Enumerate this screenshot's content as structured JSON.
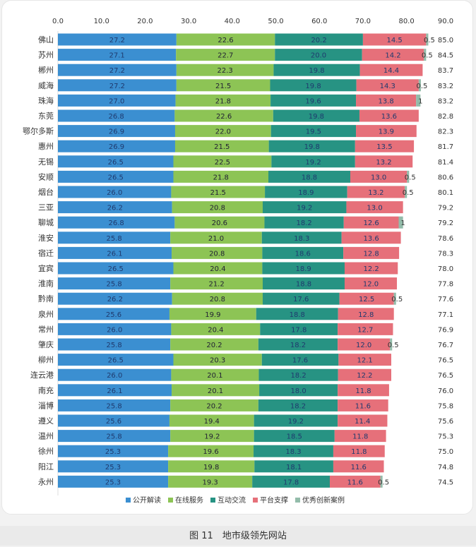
{
  "chart_data": {
    "type": "bar",
    "orientation": "horizontal",
    "stacked": true,
    "title": "",
    "xlim": [
      0,
      90
    ],
    "x_ticks": [
      "0.0",
      "10.0",
      "20.0",
      "30.0",
      "40.0",
      "50.0",
      "60.0",
      "70.0",
      "80.0",
      "90.0"
    ],
    "grid": false,
    "legend_position": "bottom",
    "categories": [
      "佛山",
      "苏州",
      "郴州",
      "威海",
      "珠海",
      "东莞",
      "鄂尔多斯",
      "惠州",
      "无锡",
      "安顺",
      "烟台",
      "三亚",
      "聊城",
      "淮安",
      "宿迁",
      "宜宾",
      "淮南",
      "黔南",
      "泉州",
      "常州",
      "肇庆",
      "柳州",
      "连云港",
      "南充",
      "淄博",
      "遵义",
      "温州",
      "徐州",
      "阳江",
      "永州"
    ],
    "series": [
      {
        "name": "公开解读",
        "color": "#3b8fd1",
        "values": [
          27.2,
          27.1,
          27.2,
          27.2,
          27.0,
          26.8,
          26.9,
          26.9,
          26.5,
          26.5,
          26.0,
          26.2,
          26.8,
          25.8,
          26.1,
          26.5,
          25.8,
          26.2,
          25.6,
          26.0,
          25.8,
          26.5,
          26.0,
          26.1,
          25.8,
          25.6,
          25.8,
          25.3,
          25.3,
          25.3
        ]
      },
      {
        "name": "在线服务",
        "color": "#8dc455",
        "values": [
          22.6,
          22.7,
          22.3,
          21.5,
          21.8,
          22.6,
          22.0,
          21.5,
          22.5,
          21.8,
          21.5,
          20.8,
          20.6,
          21.0,
          20.8,
          20.4,
          21.2,
          20.8,
          19.9,
          20.4,
          20.2,
          20.3,
          20.1,
          20.1,
          20.2,
          19.4,
          19.2,
          19.6,
          19.8,
          19.3
        ]
      },
      {
        "name": "互动交流",
        "color": "#279383",
        "values": [
          20.2,
          20.0,
          19.8,
          19.8,
          19.6,
          19.8,
          19.5,
          19.8,
          19.2,
          18.8,
          18.9,
          19.2,
          18.2,
          18.3,
          18.6,
          18.9,
          18.8,
          17.6,
          18.8,
          17.8,
          18.2,
          17.6,
          18.2,
          18.0,
          18.2,
          19.2,
          18.5,
          18.3,
          18.1,
          17.8
        ]
      },
      {
        "name": "平台支撑",
        "color": "#e6707a",
        "values": [
          14.5,
          14.2,
          14.4,
          14.3,
          13.8,
          13.6,
          13.9,
          13.5,
          13.2,
          13.0,
          13.2,
          13.0,
          12.6,
          13.6,
          12.8,
          12.2,
          12.0,
          12.5,
          12.8,
          12.7,
          12.0,
          12.1,
          12.2,
          11.8,
          11.6,
          11.4,
          11.8,
          11.8,
          11.6,
          11.6
        ]
      },
      {
        "name": "优秀创新案例",
        "color": "#93bcaa",
        "values": [
          0.5,
          0.5,
          null,
          0.5,
          1,
          null,
          null,
          null,
          null,
          0.5,
          0.5,
          null,
          1,
          null,
          null,
          null,
          null,
          0.5,
          null,
          null,
          0.5,
          null,
          null,
          null,
          null,
          null,
          null,
          null,
          null,
          0.5
        ]
      }
    ],
    "totals": [
      "85.0",
      "84.5",
      "83.7",
      "83.2",
      "83.2",
      "82.8",
      "82.3",
      "81.7",
      "81.4",
      "80.6",
      "80.1",
      "79.2",
      "79.2",
      "78.6",
      "78.3",
      "78.0",
      "77.8",
      "77.6",
      "77.1",
      "76.9",
      "76.7",
      "76.5",
      "76.5",
      "76.0",
      "75.8",
      "75.6",
      "75.3",
      "75.0",
      "74.8",
      "74.5"
    ]
  },
  "caption": "图 11　地市级领先网站"
}
